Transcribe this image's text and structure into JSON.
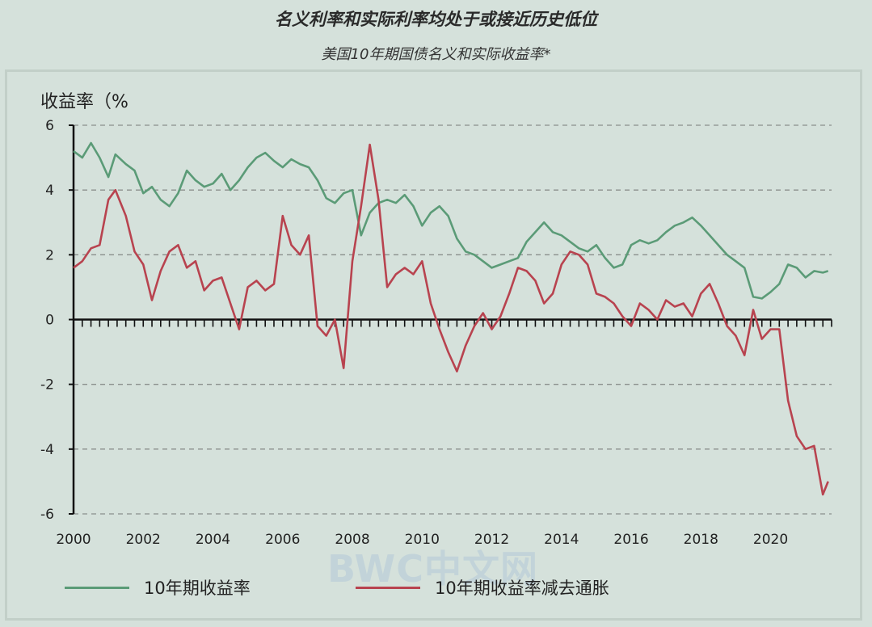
{
  "title": "名义利率和实际利率均处于或接近历史低位",
  "subtitle": "美国10年期国债名义和实际收益率*",
  "watermark": "BWC中文网",
  "colors": {
    "nominal": "#5b9b77",
    "real": "#b8434f",
    "grid": "#8a8f8c",
    "axis": "#111111"
  },
  "chart_data": {
    "type": "line",
    "title": "美国10年期国债名义和实际收益率*",
    "ylabel": "收益率（%",
    "xlabel": "",
    "xlim": [
      2000,
      2021.75
    ],
    "ylim": [
      -6,
      6
    ],
    "yticks": [
      6,
      4,
      2,
      0,
      -2,
      -4,
      -6
    ],
    "ytick_labels": [
      "6",
      "4",
      "2",
      "0",
      "-2",
      "-4",
      "-6"
    ],
    "xticks": [
      2000,
      2002,
      2004,
      2006,
      2008,
      2010,
      2012,
      2014,
      2016,
      2018,
      2020
    ],
    "xtick_labels": [
      "2000",
      "2002",
      "2004",
      "2006",
      "2008",
      "2010",
      "2012",
      "2014",
      "2016",
      "2018",
      "2020"
    ],
    "grid": "horizontal dashed",
    "legend_position": "bottom",
    "series": [
      {
        "name": "10年期收益率",
        "x": [
          2000.0,
          2000.25,
          2000.5,
          2000.75,
          2001.0,
          2001.2,
          2001.5,
          2001.75,
          2002.0,
          2002.25,
          2002.5,
          2002.75,
          2003.0,
          2003.25,
          2003.5,
          2003.75,
          2004.0,
          2004.25,
          2004.5,
          2004.75,
          2005.0,
          2005.25,
          2005.5,
          2005.75,
          2006.0,
          2006.25,
          2006.5,
          2006.75,
          2007.0,
          2007.25,
          2007.5,
          2007.75,
          2008.0,
          2008.25,
          2008.5,
          2008.75,
          2009.0,
          2009.25,
          2009.5,
          2009.75,
          2010.0,
          2010.25,
          2010.5,
          2010.75,
          2011.0,
          2011.25,
          2011.5,
          2011.75,
          2012.0,
          2012.25,
          2012.5,
          2012.75,
          2013.0,
          2013.25,
          2013.5,
          2013.75,
          2014.0,
          2014.25,
          2014.5,
          2014.75,
          2015.0,
          2015.25,
          2015.5,
          2015.75,
          2016.0,
          2016.25,
          2016.5,
          2016.75,
          2017.0,
          2017.25,
          2017.5,
          2017.75,
          2018.0,
          2018.25,
          2018.5,
          2018.75,
          2019.0,
          2019.25,
          2019.5,
          2019.75,
          2020.0,
          2020.25,
          2020.5,
          2020.75,
          2021.0,
          2021.25,
          2021.5,
          2021.65
        ],
        "values": [
          5.2,
          5.0,
          5.45,
          5.0,
          4.4,
          5.1,
          4.8,
          4.6,
          3.9,
          4.1,
          3.7,
          3.5,
          3.9,
          4.6,
          4.3,
          4.1,
          4.2,
          4.5,
          4.0,
          4.3,
          4.7,
          5.0,
          5.15,
          4.9,
          4.7,
          4.95,
          4.8,
          4.7,
          4.3,
          3.75,
          3.6,
          3.9,
          4.0,
          2.6,
          3.3,
          3.6,
          3.7,
          3.6,
          3.85,
          3.5,
          2.9,
          3.3,
          3.5,
          3.2,
          2.5,
          2.1,
          2.0,
          1.8,
          1.6,
          1.7,
          1.8,
          1.9,
          2.4,
          2.7,
          3.0,
          2.7,
          2.6,
          2.4,
          2.2,
          2.1,
          2.3,
          1.9,
          1.6,
          1.7,
          2.3,
          2.45,
          2.35,
          2.45,
          2.7,
          2.9,
          3.0,
          3.15,
          2.9,
          2.6,
          2.3,
          2.0,
          1.8,
          1.6,
          0.7,
          0.65,
          0.85,
          1.1,
          1.7,
          1.6,
          1.3,
          1.5,
          1.45,
          1.5
        ]
      },
      {
        "name": "10年期收益率减去通胀",
        "x": [
          2000.0,
          2000.25,
          2000.5,
          2000.75,
          2001.0,
          2001.2,
          2001.5,
          2001.75,
          2002.0,
          2002.25,
          2002.5,
          2002.75,
          2003.0,
          2003.25,
          2003.5,
          2003.75,
          2004.0,
          2004.25,
          2004.5,
          2004.75,
          2005.0,
          2005.25,
          2005.5,
          2005.75,
          2006.0,
          2006.25,
          2006.5,
          2006.75,
          2007.0,
          2007.25,
          2007.5,
          2007.75,
          2008.0,
          2008.25,
          2008.5,
          2008.75,
          2009.0,
          2009.25,
          2009.5,
          2009.75,
          2010.0,
          2010.25,
          2010.5,
          2010.75,
          2011.0,
          2011.25,
          2011.5,
          2011.75,
          2012.0,
          2012.25,
          2012.5,
          2012.75,
          2013.0,
          2013.25,
          2013.5,
          2013.75,
          2014.0,
          2014.25,
          2014.5,
          2014.75,
          2015.0,
          2015.25,
          2015.5,
          2015.75,
          2016.0,
          2016.25,
          2016.5,
          2016.75,
          2017.0,
          2017.25,
          2017.5,
          2017.75,
          2018.0,
          2018.25,
          2018.5,
          2018.75,
          2019.0,
          2019.25,
          2019.5,
          2019.75,
          2020.0,
          2020.25,
          2020.5,
          2020.75,
          2021.0,
          2021.25,
          2021.5,
          2021.65
        ],
        "values": [
          1.6,
          1.8,
          2.2,
          2.3,
          3.7,
          4.0,
          3.2,
          2.1,
          1.7,
          0.6,
          1.5,
          2.1,
          2.3,
          1.6,
          1.8,
          0.9,
          1.2,
          1.3,
          0.5,
          -0.3,
          1.0,
          1.2,
          0.9,
          1.1,
          3.2,
          2.3,
          2.0,
          2.6,
          -0.2,
          -0.5,
          0.0,
          -1.5,
          1.8,
          3.5,
          5.4,
          3.7,
          1.0,
          1.4,
          1.6,
          1.4,
          1.8,
          0.5,
          -0.3,
          -1.0,
          -1.6,
          -0.8,
          -0.2,
          0.2,
          -0.3,
          0.1,
          0.8,
          1.6,
          1.5,
          1.2,
          0.5,
          0.8,
          1.7,
          2.1,
          2.0,
          1.7,
          0.8,
          0.7,
          0.5,
          0.1,
          -0.2,
          0.5,
          0.3,
          0.0,
          0.6,
          0.4,
          0.5,
          0.1,
          0.8,
          1.1,
          0.5,
          -0.2,
          -0.5,
          -1.1,
          0.3,
          -0.6,
          -0.3,
          -0.3,
          -2.5,
          -3.6,
          -4.0,
          -3.9,
          -5.4,
          -5.0
        ]
      }
    ]
  }
}
